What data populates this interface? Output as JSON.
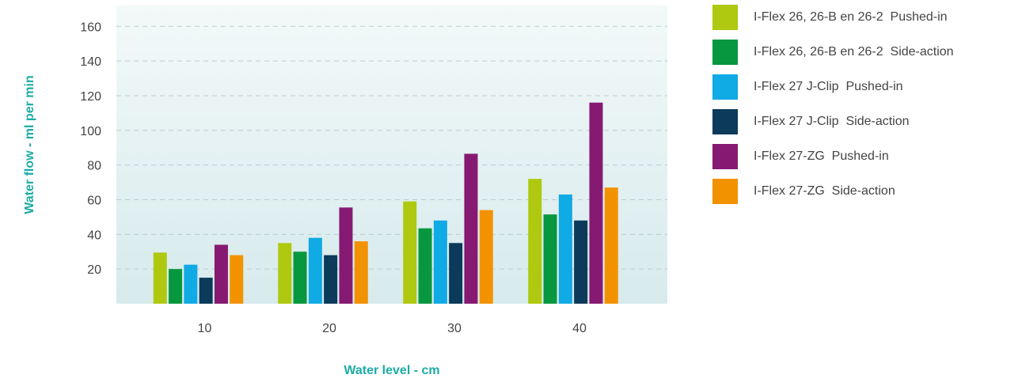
{
  "chart_data": {
    "type": "bar",
    "xlabel": "Water level - cm",
    "ylabel": "Water flow - ml per min",
    "categories": [
      "10",
      "20",
      "30",
      "40"
    ],
    "yticks": [
      20,
      40,
      60,
      80,
      100,
      120,
      140,
      160
    ],
    "ylim": [
      0,
      172
    ],
    "grid": true,
    "legend_position": "right",
    "series": [
      {
        "name": "I-Flex 26, 26-B en 26-2  Pushed-in",
        "color": "#aec90f",
        "values": [
          29.5,
          35,
          59,
          72
        ]
      },
      {
        "name": "I-Flex 26, 26-B en 26-2  Side-action",
        "color": "#07973f",
        "values": [
          20,
          30,
          43.5,
          51.5
        ]
      },
      {
        "name": "I-Flex 27 J-Clip  Pushed-in",
        "color": "#10aae4",
        "values": [
          22.5,
          38,
          48,
          63
        ]
      },
      {
        "name": "I-Flex 27 J-Clip  Side-action",
        "color": "#0b3a5a",
        "values": [
          15,
          28,
          35,
          48
        ]
      },
      {
        "name": "I-Flex 27-ZG  Pushed-in",
        "color": "#861a72",
        "values": [
          34,
          55.5,
          86.5,
          116
        ]
      },
      {
        "name": "I-Flex 27-ZG  Side-action",
        "color": "#f39200",
        "values": [
          28,
          36,
          54,
          67
        ]
      }
    ]
  }
}
